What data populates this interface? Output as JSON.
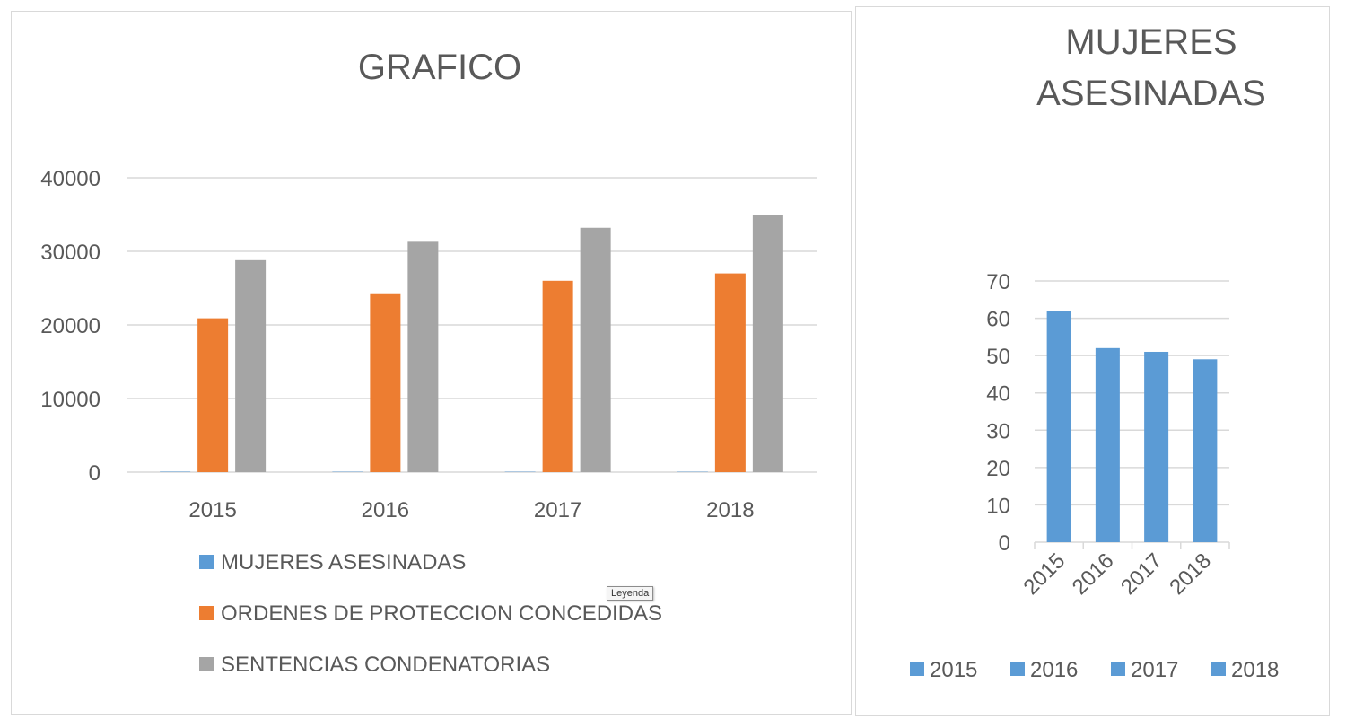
{
  "tooltip": "Leyenda",
  "chart_data": [
    {
      "type": "bar",
      "title": "GRAFICO",
      "categories": [
        "2015",
        "2016",
        "2017",
        "2018"
      ],
      "series": [
        {
          "name": "MUJERES ASESINADAS",
          "color": "#5B9BD5",
          "values": [
            62,
            52,
            51,
            49
          ]
        },
        {
          "name": "ORDENES DE PROTECCION CONCEDIDAS",
          "color": "#ED7D31",
          "values": [
            20900,
            24300,
            26000,
            27000
          ]
        },
        {
          "name": "SENTENCIAS CONDENATORIAS",
          "color": "#A5A5A5",
          "values": [
            28800,
            31300,
            33200,
            35000
          ]
        }
      ],
      "ylim": [
        0,
        40000
      ],
      "yticks": [
        "0",
        "10000",
        "20000",
        "30000",
        "40000"
      ],
      "grid": true,
      "legend": "bottom"
    },
    {
      "type": "bar",
      "title": [
        "MUJERES",
        "ASESINADAS"
      ],
      "categories": [
        "2015",
        "2016",
        "2017",
        "2018"
      ],
      "series": [
        {
          "name": "MUJERES ASESINADAS",
          "color": "#5B9BD5",
          "values": [
            62,
            52,
            51,
            49
          ]
        }
      ],
      "ylim": [
        0,
        70
      ],
      "yticks": [
        "0",
        "10",
        "20",
        "30",
        "40",
        "50",
        "60",
        "70"
      ],
      "grid": true,
      "legend": "bottom",
      "legend_entries": [
        "2015",
        "2016",
        "2017",
        "2018"
      ]
    }
  ]
}
